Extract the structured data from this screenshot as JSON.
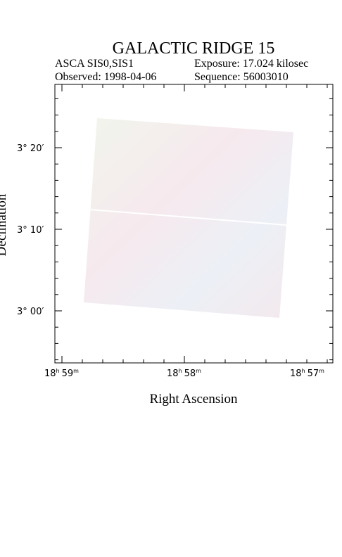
{
  "header": {
    "title": "GALACTIC RIDGE 15",
    "instrument": "ASCA SIS0,SIS1",
    "exposure": "Exposure: 17.024 kilosec",
    "observed": "Observed: 1998-04-06",
    "sequence": "Sequence: 56003010"
  },
  "x_axis": {
    "label": "Right Ascension",
    "ticks": [
      {
        "major": "18",
        "major_unit": "h",
        "minor": "59",
        "minor_unit": "m"
      },
      {
        "major": "18",
        "major_unit": "h",
        "minor": "58",
        "minor_unit": "m"
      },
      {
        "major": "18",
        "major_unit": "h",
        "minor": "57",
        "minor_unit": "m"
      }
    ]
  },
  "y_axis": {
    "label": "Declination",
    "ticks": [
      {
        "major": "3°",
        "minor": "20′"
      },
      {
        "major": "3°",
        "minor": "10′"
      },
      {
        "major": "3°",
        "minor": "00′"
      }
    ]
  }
}
